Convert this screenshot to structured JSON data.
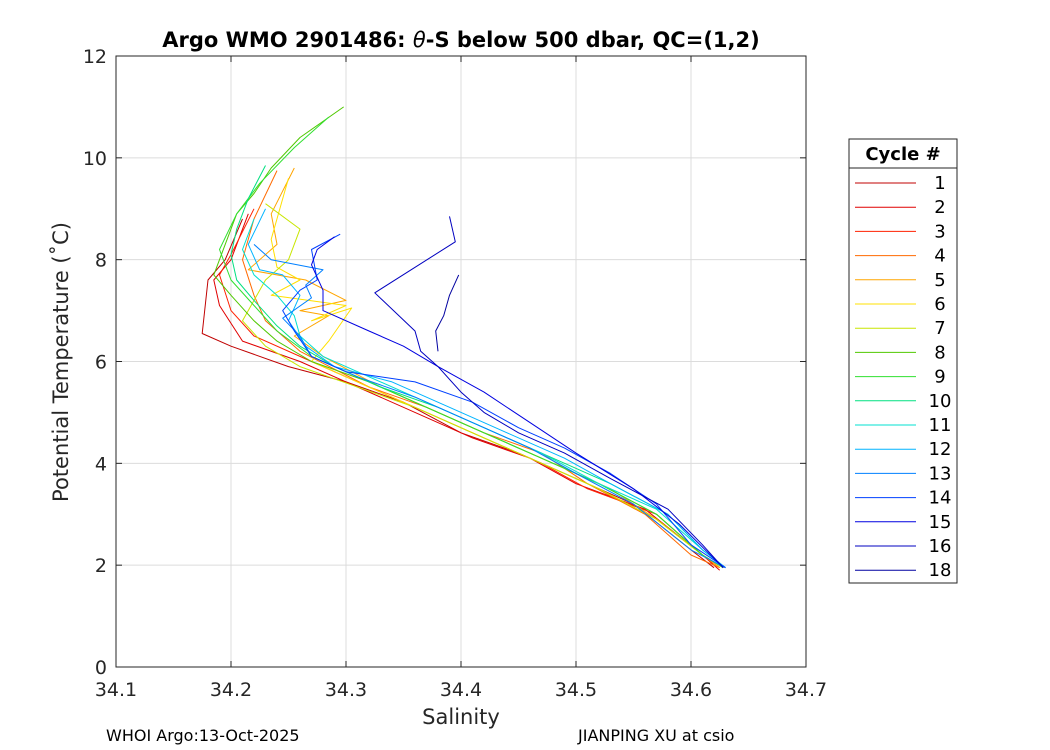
{
  "chart_data": {
    "type": "line",
    "title_prefix": "Argo WMO 2901486: ",
    "title_theta": "θ",
    "title_suffix": "-S below 500 dbar,  QC=(1,2)",
    "xlabel": "Salinity",
    "ylabel": "Potential Temperature (˚C)",
    "xlim": [
      34.1,
      34.7
    ],
    "ylim": [
      0,
      12
    ],
    "xticks": [
      "34.1",
      "34.2",
      "34.3",
      "34.4",
      "34.5",
      "34.6",
      "34.7"
    ],
    "yticks": [
      "0",
      "2",
      "4",
      "6",
      "8",
      "10",
      "12"
    ],
    "grid": true,
    "legend_title": "Cycle #",
    "legend_position": "outside-right",
    "series": [
      {
        "name": "1",
        "color": "#c00000",
        "points": [
          [
            34.21,
            8.8
          ],
          [
            34.195,
            8.0
          ],
          [
            34.18,
            7.6
          ],
          [
            34.175,
            6.55
          ],
          [
            34.2,
            6.3
          ],
          [
            34.25,
            5.9
          ],
          [
            34.3,
            5.6
          ],
          [
            34.35,
            5.2
          ],
          [
            34.4,
            4.6
          ],
          [
            34.45,
            4.2
          ],
          [
            34.5,
            3.7
          ],
          [
            34.55,
            3.2
          ],
          [
            34.6,
            2.3
          ],
          [
            34.62,
            1.95
          ]
        ]
      },
      {
        "name": "2",
        "color": "#e00000",
        "points": [
          [
            34.215,
            8.9
          ],
          [
            34.2,
            8.0
          ],
          [
            34.185,
            7.6
          ],
          [
            34.19,
            7.1
          ],
          [
            34.21,
            6.4
          ],
          [
            34.26,
            6.0
          ],
          [
            34.31,
            5.5
          ],
          [
            34.36,
            5.0
          ],
          [
            34.41,
            4.5
          ],
          [
            34.46,
            4.1
          ],
          [
            34.5,
            3.6
          ],
          [
            34.56,
            3.1
          ],
          [
            34.61,
            2.2
          ],
          [
            34.625,
            1.9
          ]
        ]
      },
      {
        "name": "3",
        "color": "#ff2000",
        "points": [
          [
            34.22,
            9.0
          ],
          [
            34.2,
            8.1
          ],
          [
            34.19,
            7.7
          ],
          [
            34.2,
            7.0
          ],
          [
            34.22,
            6.5
          ],
          [
            34.27,
            6.0
          ],
          [
            34.32,
            5.5
          ],
          [
            34.37,
            5.0
          ],
          [
            34.42,
            4.5
          ],
          [
            34.47,
            4.0
          ],
          [
            34.51,
            3.5
          ],
          [
            34.57,
            3.0
          ],
          [
            34.61,
            2.2
          ],
          [
            34.625,
            1.95
          ]
        ]
      },
      {
        "name": "4",
        "color": "#ff6a00",
        "points": [
          [
            34.24,
            9.75
          ],
          [
            34.22,
            8.8
          ],
          [
            34.21,
            8.0
          ],
          [
            34.22,
            7.3
          ],
          [
            34.23,
            6.8
          ],
          [
            34.26,
            6.2
          ],
          [
            34.32,
            5.5
          ],
          [
            34.37,
            5.1
          ],
          [
            34.42,
            4.6
          ],
          [
            34.47,
            4.2
          ],
          [
            34.51,
            3.6
          ],
          [
            34.56,
            3.0
          ],
          [
            34.6,
            2.2
          ],
          [
            34.625,
            1.95
          ]
        ]
      },
      {
        "name": "5",
        "color": "#ffa500",
        "points": [
          [
            34.255,
            9.8
          ],
          [
            34.235,
            8.9
          ],
          [
            34.24,
            8.3
          ],
          [
            34.215,
            7.8
          ],
          [
            34.265,
            7.6
          ],
          [
            34.3,
            7.2
          ],
          [
            34.26,
            7.0
          ],
          [
            34.285,
            6.9
          ],
          [
            34.255,
            6.5
          ],
          [
            34.28,
            6.1
          ],
          [
            34.33,
            5.5
          ],
          [
            34.38,
            5.0
          ],
          [
            34.43,
            4.5
          ],
          [
            34.48,
            4.0
          ],
          [
            34.53,
            3.5
          ],
          [
            34.57,
            2.9
          ],
          [
            34.61,
            2.2
          ],
          [
            34.625,
            1.95
          ]
        ]
      },
      {
        "name": "6",
        "color": "#ffe000",
        "points": [
          [
            34.25,
            9.6
          ],
          [
            34.235,
            8.4
          ],
          [
            34.24,
            7.85
          ],
          [
            34.26,
            7.6
          ],
          [
            34.235,
            7.3
          ],
          [
            34.3,
            7.1
          ],
          [
            34.27,
            6.8
          ],
          [
            34.305,
            7.05
          ],
          [
            34.285,
            6.4
          ],
          [
            34.27,
            6.0
          ],
          [
            34.32,
            5.5
          ],
          [
            34.37,
            5.0
          ],
          [
            34.42,
            4.5
          ],
          [
            34.47,
            4.0
          ],
          [
            34.52,
            3.5
          ],
          [
            34.57,
            2.9
          ],
          [
            34.61,
            2.2
          ],
          [
            34.628,
            1.95
          ]
        ]
      },
      {
        "name": "7",
        "color": "#c8e600",
        "points": [
          [
            34.23,
            9.1
          ],
          [
            34.26,
            8.6
          ],
          [
            34.25,
            8.0
          ],
          [
            34.23,
            7.6
          ],
          [
            34.22,
            7.2
          ],
          [
            34.21,
            6.8
          ],
          [
            34.23,
            6.3
          ],
          [
            34.26,
            5.9
          ],
          [
            34.31,
            5.5
          ],
          [
            34.36,
            5.1
          ],
          [
            34.41,
            4.6
          ],
          [
            34.46,
            4.1
          ],
          [
            34.52,
            3.5
          ],
          [
            34.57,
            2.9
          ],
          [
            34.61,
            2.2
          ],
          [
            34.628,
            1.95
          ]
        ]
      },
      {
        "name": "8",
        "color": "#50c800",
        "points": [
          [
            34.298,
            11.0
          ],
          [
            34.26,
            10.4
          ],
          [
            34.235,
            9.8
          ],
          [
            34.22,
            9.3
          ],
          [
            34.205,
            8.9
          ],
          [
            34.195,
            8.3
          ],
          [
            34.185,
            7.7
          ],
          [
            34.2,
            7.3
          ],
          [
            34.22,
            6.8
          ],
          [
            34.24,
            6.4
          ],
          [
            34.27,
            6.0
          ],
          [
            34.32,
            5.6
          ],
          [
            34.37,
            5.1
          ],
          [
            34.42,
            4.6
          ],
          [
            34.47,
            4.1
          ],
          [
            34.52,
            3.6
          ],
          [
            34.57,
            3.0
          ],
          [
            34.61,
            2.2
          ],
          [
            34.628,
            1.95
          ]
        ]
      },
      {
        "name": "9",
        "color": "#30e030",
        "points": [
          [
            34.285,
            10.8
          ],
          [
            34.255,
            10.2
          ],
          [
            34.225,
            9.5
          ],
          [
            34.205,
            8.9
          ],
          [
            34.19,
            8.2
          ],
          [
            34.2,
            7.6
          ],
          [
            34.22,
            7.1
          ],
          [
            34.24,
            6.6
          ],
          [
            34.27,
            6.1
          ],
          [
            34.32,
            5.6
          ],
          [
            34.37,
            5.1
          ],
          [
            34.42,
            4.6
          ],
          [
            34.47,
            4.1
          ],
          [
            34.52,
            3.6
          ],
          [
            34.57,
            3.0
          ],
          [
            34.61,
            2.2
          ],
          [
            34.628,
            1.95
          ]
        ]
      },
      {
        "name": "10",
        "color": "#00e080",
        "points": [
          [
            34.23,
            9.85
          ],
          [
            34.215,
            9.2
          ],
          [
            34.205,
            8.6
          ],
          [
            34.2,
            8.1
          ],
          [
            34.205,
            7.6
          ],
          [
            34.22,
            7.2
          ],
          [
            34.24,
            6.7
          ],
          [
            34.26,
            6.3
          ],
          [
            34.29,
            5.9
          ],
          [
            34.33,
            5.5
          ],
          [
            34.38,
            5.1
          ],
          [
            34.43,
            4.6
          ],
          [
            34.48,
            4.1
          ],
          [
            34.53,
            3.6
          ],
          [
            34.58,
            3.0
          ],
          [
            34.61,
            2.3
          ],
          [
            34.63,
            1.95
          ]
        ]
      },
      {
        "name": "11",
        "color": "#00e0d0",
        "points": [
          [
            34.22,
            8.8
          ],
          [
            34.21,
            8.2
          ],
          [
            34.22,
            7.7
          ],
          [
            34.24,
            7.3
          ],
          [
            34.255,
            6.9
          ],
          [
            34.26,
            6.5
          ],
          [
            34.28,
            6.1
          ],
          [
            34.32,
            5.7
          ],
          [
            34.37,
            5.2
          ],
          [
            34.42,
            4.7
          ],
          [
            34.47,
            4.2
          ],
          [
            34.52,
            3.6
          ],
          [
            34.57,
            3.1
          ],
          [
            34.61,
            2.3
          ],
          [
            34.63,
            1.95
          ]
        ]
      },
      {
        "name": "12",
        "color": "#00b4ff",
        "points": [
          [
            34.23,
            9.0
          ],
          [
            34.215,
            8.3
          ],
          [
            34.225,
            7.8
          ],
          [
            34.245,
            7.7
          ],
          [
            34.26,
            7.3
          ],
          [
            34.25,
            6.8
          ],
          [
            34.265,
            6.3
          ],
          [
            34.29,
            5.9
          ],
          [
            34.34,
            5.6
          ],
          [
            34.39,
            5.1
          ],
          [
            34.44,
            4.6
          ],
          [
            34.49,
            4.1
          ],
          [
            34.53,
            3.6
          ],
          [
            34.58,
            3.0
          ],
          [
            34.61,
            2.3
          ],
          [
            34.63,
            1.95
          ]
        ]
      },
      {
        "name": "13",
        "color": "#0080ff",
        "points": [
          [
            34.22,
            8.3
          ],
          [
            34.235,
            8.0
          ],
          [
            34.28,
            7.8
          ],
          [
            34.265,
            7.5
          ],
          [
            34.27,
            7.25
          ],
          [
            34.245,
            6.85
          ],
          [
            34.26,
            6.5
          ],
          [
            34.27,
            6.1
          ],
          [
            34.31,
            5.7
          ],
          [
            34.36,
            5.3
          ],
          [
            34.41,
            4.8
          ],
          [
            34.46,
            4.3
          ],
          [
            34.5,
            3.8
          ],
          [
            34.55,
            3.2
          ],
          [
            34.6,
            2.3
          ],
          [
            34.63,
            1.95
          ]
        ]
      },
      {
        "name": "14",
        "color": "#0040ff",
        "points": [
          [
            34.295,
            8.5
          ],
          [
            34.27,
            8.2
          ],
          [
            34.275,
            7.6
          ],
          [
            34.26,
            7.4
          ],
          [
            34.245,
            7.0
          ],
          [
            34.255,
            6.6
          ],
          [
            34.27,
            6.1
          ],
          [
            34.3,
            5.8
          ],
          [
            34.36,
            5.6
          ],
          [
            34.41,
            5.2
          ],
          [
            34.45,
            4.7
          ],
          [
            34.49,
            4.3
          ],
          [
            34.53,
            3.8
          ],
          [
            34.57,
            3.2
          ],
          [
            34.6,
            2.4
          ],
          [
            34.63,
            1.95
          ]
        ]
      },
      {
        "name": "15",
        "color": "#0000e0",
        "points": [
          [
            34.29,
            8.45
          ],
          [
            34.275,
            8.2
          ],
          [
            34.27,
            7.9
          ],
          [
            34.28,
            7.4
          ],
          [
            34.28,
            7.0
          ],
          [
            34.32,
            6.6
          ],
          [
            34.35,
            6.3
          ],
          [
            34.38,
            5.9
          ],
          [
            34.42,
            5.4
          ],
          [
            34.46,
            4.8
          ],
          [
            34.5,
            4.2
          ],
          [
            34.55,
            3.5
          ],
          [
            34.59,
            2.8
          ],
          [
            34.628,
            1.95
          ]
        ]
      },
      {
        "name": "16",
        "color": "#0000c0",
        "points": [
          [
            34.39,
            8.85
          ],
          [
            34.395,
            8.35
          ],
          [
            34.325,
            7.35
          ],
          [
            34.36,
            6.6
          ],
          [
            34.365,
            6.2
          ],
          [
            34.38,
            5.9
          ],
          [
            34.4,
            5.4
          ],
          [
            34.42,
            5.0
          ],
          [
            34.45,
            4.6
          ],
          [
            34.49,
            4.2
          ],
          [
            34.53,
            3.7
          ],
          [
            34.58,
            3.1
          ],
          [
            34.61,
            2.4
          ],
          [
            34.628,
            1.95
          ]
        ]
      },
      {
        "name": "18",
        "color": "#0000a0",
        "points": [
          [
            34.398,
            7.7
          ],
          [
            34.39,
            7.3
          ],
          [
            34.385,
            6.9
          ],
          [
            34.378,
            6.6
          ],
          [
            34.38,
            6.2
          ]
        ]
      }
    ]
  },
  "footer": {
    "left": "WHOI Argo:13-Oct-2025",
    "right": "JIANPING XU at csio"
  }
}
